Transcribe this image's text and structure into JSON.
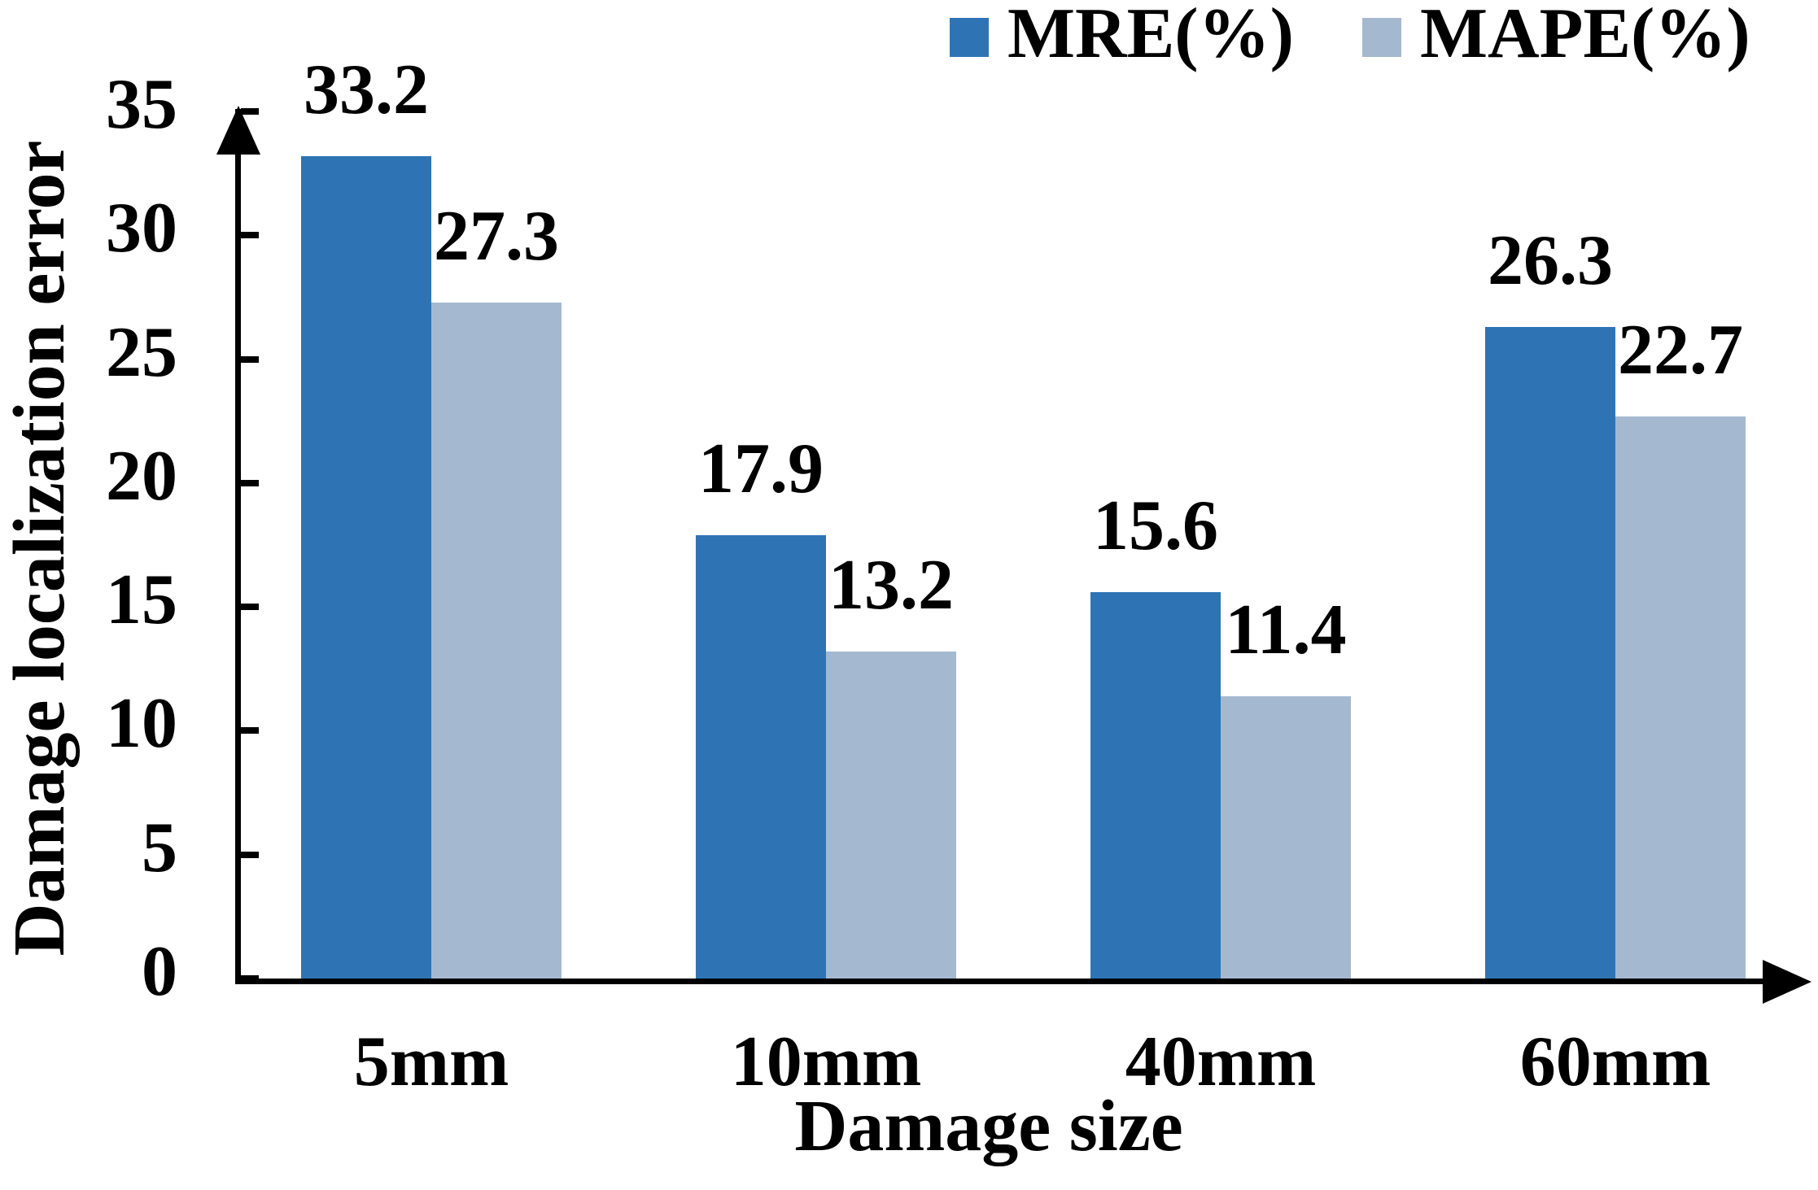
{
  "chart_data": {
    "type": "bar",
    "title": "",
    "categories": [
      "5mm",
      "10mm",
      "40mm",
      "60mm"
    ],
    "series": [
      {
        "name": "MRE(%)",
        "color": "#2E74B5",
        "values": [
          33.2,
          17.9,
          15.6,
          26.3
        ]
      },
      {
        "name": "MAPE(%)",
        "color": "#A4B9D0",
        "values": [
          27.3,
          13.2,
          11.4,
          22.7
        ]
      }
    ],
    "xlabel": "Damage size",
    "ylabel": "Damage localization error",
    "ylim": [
      0,
      35
    ],
    "yticks": [
      0,
      5,
      10,
      15,
      20,
      25,
      30,
      35
    ],
    "grid": false,
    "legend_position": "top-right",
    "value_labels": true,
    "axis_color": "#000000",
    "text_color": "#000000",
    "background": "#FFFFFF"
  }
}
